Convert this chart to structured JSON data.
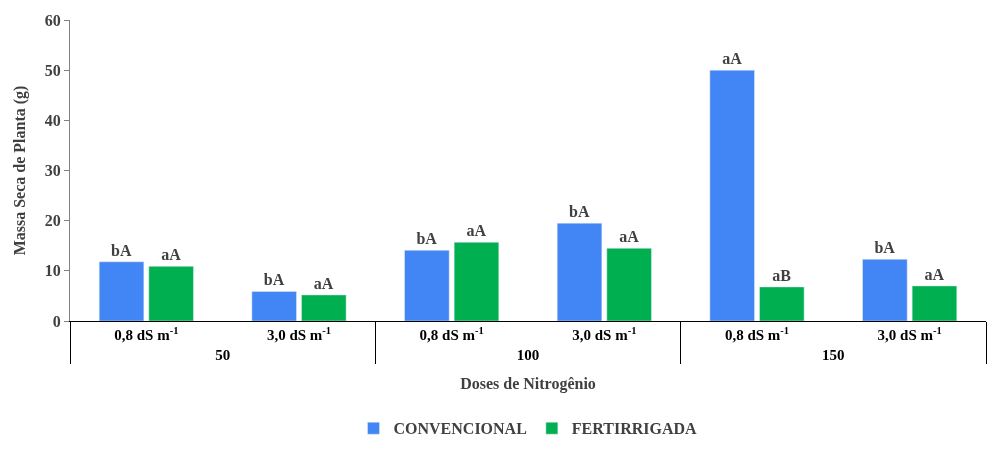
{
  "chart_data": {
    "type": "bar",
    "ylabel": "Massa Seca de Planta (g)",
    "xlabel": "Doses de Nitrogênio",
    "categories": [
      "0,8 dS m$^{-1}$",
      "3,0 dS m$^{-1}$",
      "0,8 dS m$^{-1}$",
      "3,0 dS m$^{-1}$",
      "0,8 dS m$^{-1}$",
      "3,0 dS m$^{-1}$"
    ],
    "annotations": [
      "50",
      "100",
      "150"
    ],
    "series": [
      {
        "name": "CONVENCIONAL",
        "color": "#4285f4",
        "values": [
          11.8,
          5.9,
          14.1,
          19.5,
          50.0,
          12.3
        ],
        "value_labels": [
          "bA",
          "bA",
          "bA",
          "bA",
          "aA",
          "bA"
        ]
      },
      {
        "name": "FERTIRRIGADA",
        "color": "#00b050",
        "values": [
          10.9,
          5.2,
          15.7,
          14.5,
          6.8,
          7.0
        ],
        "value_labels": [
          "aA",
          "aA",
          "aA",
          "aA",
          "aB",
          "aA"
        ]
      }
    ],
    "ylim": [
      0,
      60
    ],
    "yticks": [
      0,
      10,
      20,
      30,
      40,
      50,
      60
    ],
    "legend": "bottom"
  }
}
